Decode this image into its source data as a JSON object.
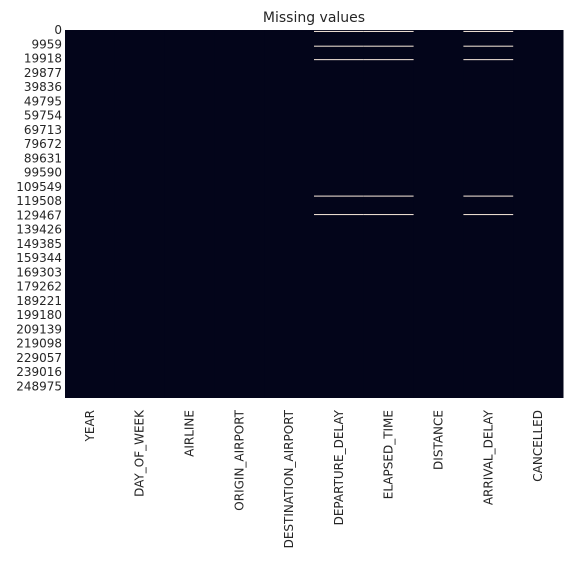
{
  "chart_data": {
    "type": "heatmap",
    "title": "Missing values",
    "xlabel": "",
    "ylabel": "",
    "x": [
      "YEAR",
      "DAY_OF_WEEK",
      "AIRLINE",
      "ORIGIN_AIRPORT",
      "DESTINATION_AIRPORT",
      "DEPARTURE_DELAY",
      "ELAPSED_TIME",
      "DISTANCE",
      "ARRIVAL_DELAY",
      "CANCELLED"
    ],
    "y_ticks": [
      "0",
      "9959",
      "19918",
      "29877",
      "39836",
      "49795",
      "59754",
      "69713",
      "79672",
      "89631",
      "99590",
      "109549",
      "119508",
      "129467",
      "139426",
      "149385",
      "159344",
      "169303",
      "179262",
      "189221",
      "199180",
      "209139",
      "219098",
      "229057",
      "239016",
      "248975"
    ],
    "y_step": 9959,
    "n_rows": 257000,
    "colors": {
      "present": "#03051a",
      "missing": "#faebdd"
    },
    "colorbar": false,
    "missing_rows_by_column": {
      "DEPARTURE_DELAY": [
        1000,
        11300,
        20700,
        116000,
        128900
      ],
      "ELAPSED_TIME": [
        1000,
        11300,
        20700,
        116000,
        128900
      ],
      "ARRIVAL_DELAY": [
        1000,
        11300,
        20700,
        116000,
        128900
      ]
    }
  }
}
